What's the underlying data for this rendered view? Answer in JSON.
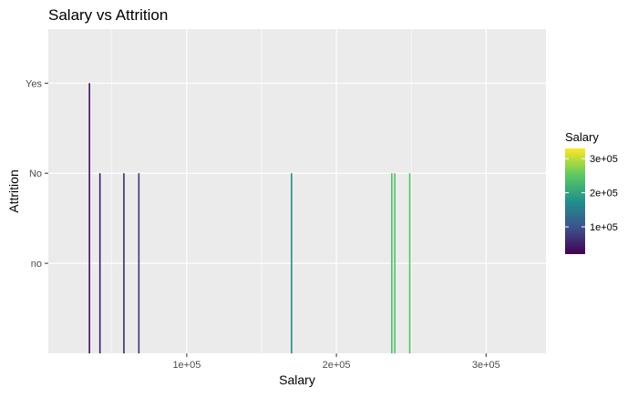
{
  "chart_data": {
    "type": "bar",
    "title": "Salary vs Attrition",
    "xlabel": "Salary",
    "ylabel": "Attrition",
    "x_ticks": [
      {
        "value": 100000,
        "label": "1e+05"
      },
      {
        "value": 200000,
        "label": "2e+05"
      },
      {
        "value": 300000,
        "label": "3e+05"
      }
    ],
    "xlim": [
      7500,
      340000
    ],
    "y_categories": [
      "no",
      "No",
      "Yes"
    ],
    "bars": [
      {
        "salary": 35000,
        "attrition": "Yes"
      },
      {
        "salary": 42000,
        "attrition": "No"
      },
      {
        "salary": 58000,
        "attrition": "No"
      },
      {
        "salary": 68000,
        "attrition": "No"
      },
      {
        "salary": 170000,
        "attrition": "No"
      },
      {
        "salary": 237000,
        "attrition": "No"
      },
      {
        "salary": 239000,
        "attrition": "No"
      },
      {
        "salary": 249000,
        "attrition": "No"
      }
    ],
    "legend": {
      "title": "Salary",
      "position": "right",
      "min": 20000,
      "max": 330000,
      "ticks": [
        {
          "value": 100000,
          "label": "1e+05"
        },
        {
          "value": 200000,
          "label": "2e+05"
        },
        {
          "value": 300000,
          "label": "3e+05"
        }
      ]
    },
    "colormap": "viridis",
    "grid": true,
    "panel_background": "#ebebeb",
    "grid_color": "#ffffff"
  }
}
